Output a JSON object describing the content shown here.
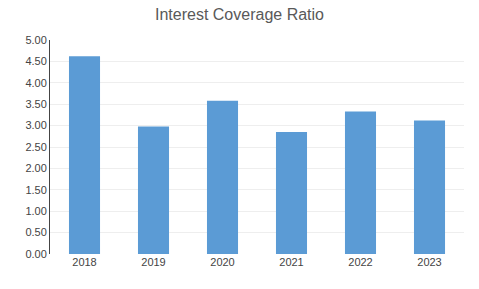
{
  "chart_data": {
    "type": "bar",
    "title": "Interest Coverage Ratio",
    "categories": [
      "2018",
      "2019",
      "2020",
      "2021",
      "2022",
      "2023"
    ],
    "values": [
      4.62,
      2.98,
      3.58,
      2.85,
      3.33,
      3.12
    ],
    "color": "#5B9BD5",
    "ylim": [
      0,
      5.0
    ],
    "yticks": [
      {
        "value": 0.0,
        "label": "0.00"
      },
      {
        "value": 0.5,
        "label": "0.50"
      },
      {
        "value": 1.0,
        "label": "1.00"
      },
      {
        "value": 1.5,
        "label": "1.50"
      },
      {
        "value": 2.0,
        "label": "2.00"
      },
      {
        "value": 2.5,
        "label": "2.50"
      },
      {
        "value": 3.0,
        "label": "3.00"
      },
      {
        "value": 3.5,
        "label": "3.50"
      },
      {
        "value": 4.0,
        "label": "4.00"
      },
      {
        "value": 4.5,
        "label": "4.50"
      },
      {
        "value": 5.0,
        "label": "5.00"
      }
    ],
    "grid": true
  }
}
